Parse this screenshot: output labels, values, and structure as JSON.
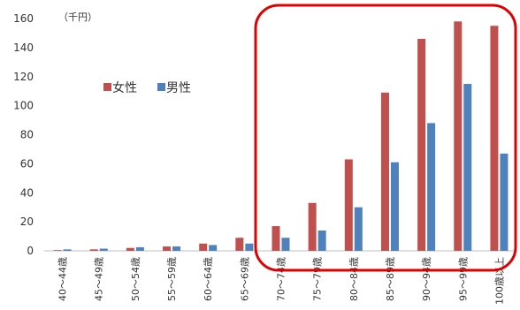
{
  "chart_data": {
    "type": "bar",
    "unit_label": "（千円）",
    "categories": [
      "40～44歳",
      "45～49歳",
      "50～54歳",
      "55～59歳",
      "60～64歳",
      "65～69歳",
      "70～74歳",
      "75～79歳",
      "80～84歳",
      "85～89歳",
      "90～94歳",
      "95～99歳",
      "100歳以上"
    ],
    "series": [
      {
        "name": "女性",
        "color": "#C0504D",
        "values": [
          0.5,
          1,
          2,
          3,
          5,
          9,
          17,
          33,
          63,
          109,
          146,
          158,
          155
        ]
      },
      {
        "name": "男性",
        "color": "#4F81BD",
        "values": [
          1,
          1.5,
          2.5,
          3,
          4,
          5,
          9,
          14,
          30,
          61,
          88,
          115,
          67
        ]
      }
    ],
    "ylim": [
      0,
      160
    ],
    "yticks": [
      0,
      20,
      40,
      60,
      80,
      100,
      120,
      140,
      160
    ],
    "legend_position": "upper-left",
    "highlight_color": "#E00000"
  }
}
